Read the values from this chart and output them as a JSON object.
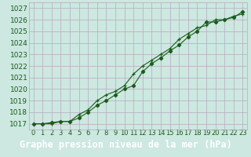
{
  "title": "Graphe pression niveau de la mer (hPa)",
  "xlabel_hours": [
    0,
    1,
    2,
    3,
    4,
    5,
    6,
    7,
    8,
    9,
    10,
    11,
    12,
    13,
    14,
    15,
    16,
    17,
    18,
    19,
    20,
    21,
    22,
    23
  ],
  "ylim": [
    1016.5,
    1027.5
  ],
  "xlim": [
    -0.5,
    23.5
  ],
  "yticks": [
    1017,
    1018,
    1019,
    1020,
    1021,
    1022,
    1023,
    1024,
    1025,
    1026,
    1027
  ],
  "bg_color": "#cce8e0",
  "grid_color": "#b8a8c0",
  "line_color": "#1a5c1a",
  "title_bg": "#1a5c1a",
  "title_fg": "#ffffff",
  "line1_y": [
    1017.0,
    1017.0,
    1017.1,
    1017.2,
    1017.2,
    1017.5,
    1018.0,
    1018.6,
    1019.0,
    1019.5,
    1020.0,
    1020.3,
    1021.5,
    1022.2,
    1022.7,
    1023.3,
    1023.8,
    1024.5,
    1025.0,
    1025.8,
    1025.8,
    1026.0,
    1026.2,
    1026.7
  ],
  "line2_y": [
    1017.0,
    1017.0,
    1017.0,
    1017.2,
    1017.2,
    1017.8,
    1018.2,
    1019.0,
    1019.5,
    1019.8,
    1020.3,
    1021.3,
    1022.0,
    1022.5,
    1023.0,
    1023.5,
    1024.3,
    1024.8,
    1025.3,
    1025.5,
    1026.0,
    1026.0,
    1026.3,
    1026.5
  ],
  "tick_fontsize": 6.5,
  "label_fontsize": 8.5
}
